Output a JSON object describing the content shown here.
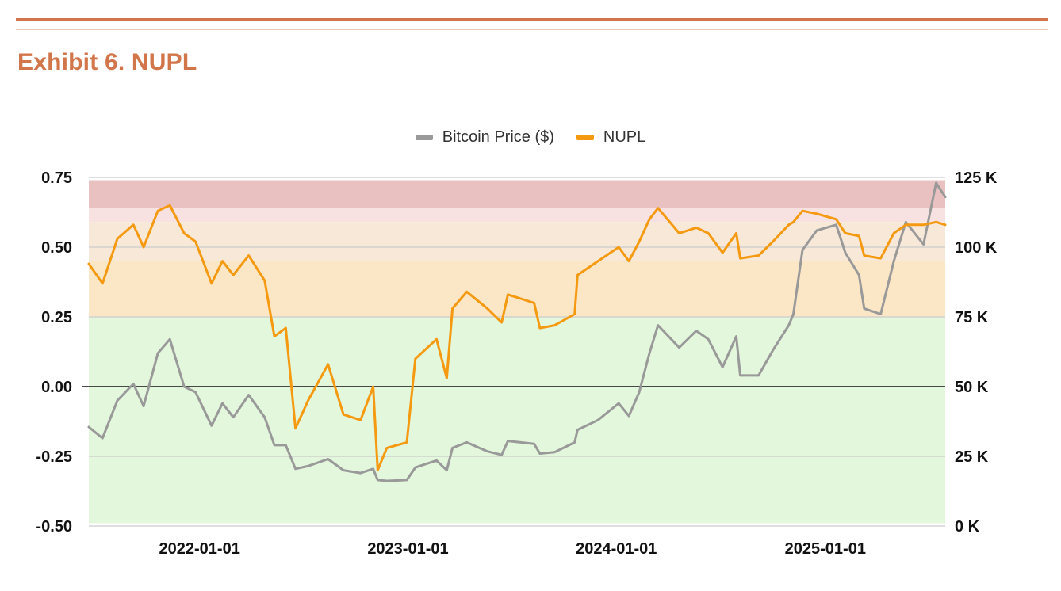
{
  "page": {
    "title": "Exhibit 6. NUPL"
  },
  "colors": {
    "accent": "#d2754a",
    "price_line": "#999999",
    "nupl_line": "#f59a10",
    "zone_euphoria": "#e9c1c1",
    "zone_belief_top": "#f7e1e1",
    "zone_belief": "#f8e8d8",
    "zone_optimism": "#fbe6c6",
    "zone_hope": "#e3f7dc"
  },
  "chart_data": {
    "type": "line",
    "title": "",
    "legend_position": "top",
    "grid": true,
    "x_ticks": [
      "2022-01-01",
      "2023-01-01",
      "2024-01-01",
      "2025-01-01"
    ],
    "x_range": [
      "2021-06-21",
      "2025-07-30"
    ],
    "y_left": {
      "ticks": [
        "0.75",
        "0.50",
        "0.25",
        "0.00",
        "-0.25",
        "-0.50"
      ],
      "range": [
        -0.5,
        0.75
      ]
    },
    "y_right": {
      "ticks": [
        "125 K",
        "100 K",
        "75 K",
        "50 K",
        "25 K",
        "0 K"
      ],
      "range": [
        0,
        125000
      ]
    },
    "background_bands": [
      {
        "from": 0.64,
        "to": 0.74
      },
      {
        "from": 0.59,
        "to": 0.64
      },
      {
        "from": 0.45,
        "to": 0.59
      },
      {
        "from": 0.25,
        "to": 0.45
      },
      {
        "from": -0.49,
        "to": 0.25
      }
    ],
    "series": [
      {
        "name": "Bitcoin Price ($)",
        "axis": "right",
        "x": [
          "2021-06-21",
          "2021-07-15",
          "2021-08-10",
          "2021-09-07",
          "2021-09-25",
          "2021-10-20",
          "2021-11-10",
          "2021-12-05",
          "2021-12-25",
          "2022-01-22",
          "2022-02-10",
          "2022-03-01",
          "2022-03-28",
          "2022-04-25",
          "2022-05-12",
          "2022-06-01",
          "2022-06-18",
          "2022-07-10",
          "2022-08-14",
          "2022-09-10",
          "2022-10-10",
          "2022-11-01",
          "2022-11-09",
          "2022-11-25",
          "2022-12-30",
          "2023-01-14",
          "2023-02-20",
          "2023-03-10",
          "2023-03-20",
          "2023-04-14",
          "2023-05-20",
          "2023-06-14",
          "2023-06-25",
          "2023-08-10",
          "2023-08-20",
          "2023-09-15",
          "2023-10-20",
          "2023-10-25",
          "2023-11-30",
          "2024-01-05",
          "2024-01-23",
          "2024-02-10",
          "2024-02-28",
          "2024-03-14",
          "2024-04-20",
          "2024-05-20",
          "2024-06-10",
          "2024-07-05",
          "2024-07-29",
          "2024-08-05",
          "2024-09-06",
          "2024-10-01",
          "2024-10-29",
          "2024-11-06",
          "2024-11-22",
          "2024-12-17",
          "2025-01-20",
          "2025-02-05",
          "2025-03-01",
          "2025-03-10",
          "2025-04-08",
          "2025-05-01",
          "2025-05-22",
          "2025-06-22",
          "2025-07-14",
          "2025-07-30"
        ],
        "values": [
          35500,
          31500,
          45000,
          51000,
          43000,
          62000,
          67000,
          50000,
          48000,
          36000,
          44000,
          39000,
          47000,
          39000,
          29000,
          29000,
          20500,
          21500,
          24000,
          20000,
          19000,
          20500,
          16500,
          16200,
          16500,
          21000,
          23500,
          20000,
          28000,
          30000,
          26800,
          25500,
          30500,
          29500,
          26000,
          26500,
          30000,
          34500,
          38000,
          44000,
          39500,
          48000,
          62000,
          72000,
          64000,
          70000,
          67000,
          57000,
          68000,
          54000,
          54000,
          63000,
          72000,
          76000,
          99000,
          106000,
          108000,
          98000,
          90000,
          78000,
          76000,
          95000,
          109000,
          101000,
          123000,
          118000
        ]
      },
      {
        "name": "NUPL",
        "axis": "left",
        "x": [
          "2021-06-21",
          "2021-07-15",
          "2021-08-10",
          "2021-09-07",
          "2021-09-25",
          "2021-10-20",
          "2021-11-10",
          "2021-12-05",
          "2021-12-25",
          "2022-01-22",
          "2022-02-10",
          "2022-03-01",
          "2022-03-28",
          "2022-04-25",
          "2022-05-12",
          "2022-06-01",
          "2022-06-18",
          "2022-07-10",
          "2022-08-14",
          "2022-09-10",
          "2022-10-10",
          "2022-11-01",
          "2022-11-09",
          "2022-11-25",
          "2022-12-30",
          "2023-01-14",
          "2023-02-20",
          "2023-03-10",
          "2023-03-20",
          "2023-04-14",
          "2023-05-20",
          "2023-06-14",
          "2023-06-25",
          "2023-08-10",
          "2023-08-20",
          "2023-09-15",
          "2023-10-20",
          "2023-10-25",
          "2023-11-30",
          "2024-01-05",
          "2024-01-23",
          "2024-02-10",
          "2024-02-28",
          "2024-03-14",
          "2024-04-20",
          "2024-05-20",
          "2024-06-10",
          "2024-07-05",
          "2024-07-29",
          "2024-08-05",
          "2024-09-06",
          "2024-10-01",
          "2024-10-29",
          "2024-11-06",
          "2024-11-22",
          "2024-12-17",
          "2025-01-20",
          "2025-02-05",
          "2025-03-01",
          "2025-03-10",
          "2025-04-08",
          "2025-05-01",
          "2025-05-22",
          "2025-06-22",
          "2025-07-14",
          "2025-07-30"
        ],
        "values": [
          0.44,
          0.37,
          0.53,
          0.58,
          0.5,
          0.63,
          0.65,
          0.55,
          0.52,
          0.37,
          0.45,
          0.4,
          0.47,
          0.38,
          0.18,
          0.21,
          -0.15,
          -0.05,
          0.08,
          -0.1,
          -0.12,
          0.0,
          -0.3,
          -0.22,
          -0.2,
          0.1,
          0.17,
          0.03,
          0.28,
          0.34,
          0.28,
          0.23,
          0.33,
          0.3,
          0.21,
          0.22,
          0.26,
          0.4,
          0.45,
          0.5,
          0.45,
          0.52,
          0.6,
          0.64,
          0.55,
          0.57,
          0.55,
          0.48,
          0.55,
          0.46,
          0.47,
          0.52,
          0.58,
          0.59,
          0.63,
          0.62,
          0.6,
          0.55,
          0.54,
          0.47,
          0.46,
          0.55,
          0.58,
          0.58,
          0.59,
          0.58
        ]
      }
    ]
  }
}
